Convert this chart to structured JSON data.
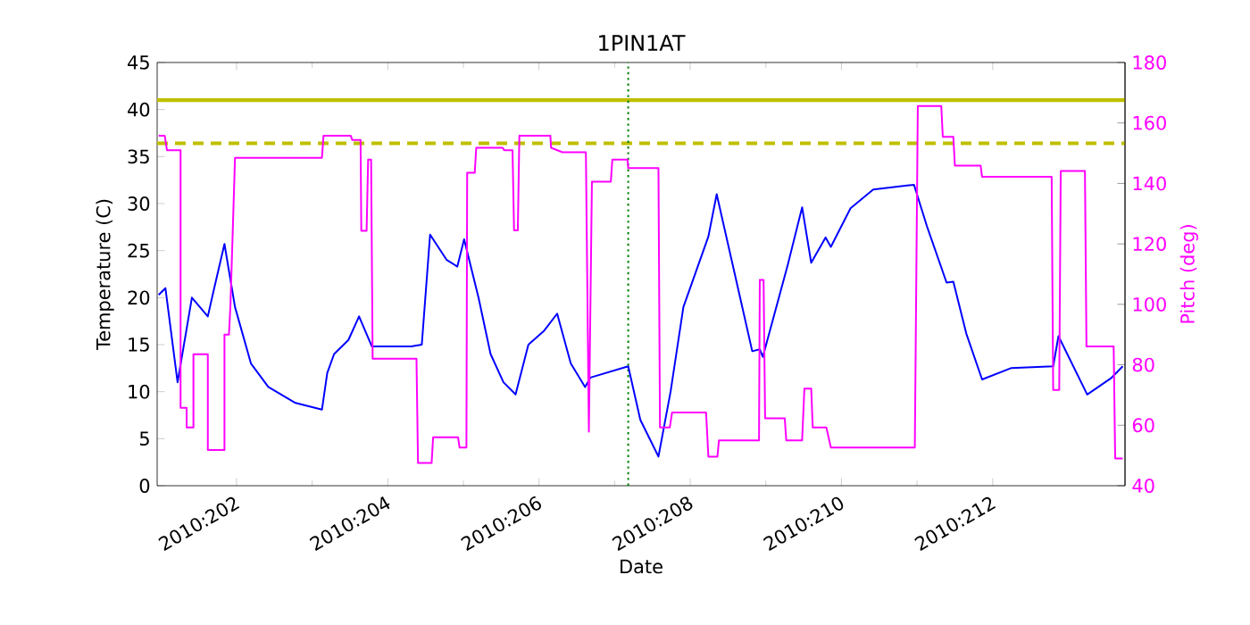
{
  "chart_data": {
    "type": "line",
    "title": "1PIN1AT",
    "xlabel": "Date",
    "ylabel": "Temperature (C)",
    "y2label": "Pitch (deg)",
    "xlim": [
      "2010-07-19T22:48",
      "2010-08-01T18:00"
    ],
    "ylim": [
      0,
      45
    ],
    "y2lim": [
      40,
      180
    ],
    "xticks": [
      {
        "value": "2010-07-21",
        "label": "2010:202"
      },
      {
        "value": "2010-07-23",
        "label": "2010:204"
      },
      {
        "value": "2010-07-25",
        "label": "2010:206"
      },
      {
        "value": "2010-07-27",
        "label": "2010:208"
      },
      {
        "value": "2010-07-29",
        "label": "2010:210"
      },
      {
        "value": "2010-07-31",
        "label": "2010:212"
      }
    ],
    "yticks": [
      0,
      5,
      10,
      15,
      20,
      25,
      30,
      35,
      40,
      45
    ],
    "y2ticks": [
      40,
      60,
      80,
      100,
      120,
      140,
      160,
      180
    ],
    "series": [
      {
        "color": "#0000ff",
        "x": [
          "2010-07-19T23:17",
          "2010-07-20T01:26",
          "2010-07-20T05:17",
          "2010-07-20T09:50",
          "2010-07-20T14:53",
          "2010-07-20T16:34",
          "2010-07-20T20:10",
          "2010-07-20T23:31",
          "2010-07-21T04:34",
          "2010-07-21T10:05",
          "2010-07-21T18:43",
          "2010-07-22T03:07",
          "2010-07-22T04:48",
          "2010-07-22T06:58",
          "2010-07-22T11:31",
          "2010-07-22T14:53",
          "2010-07-22T18:58",
          "2010-07-23T07:26",
          "2010-07-23T10:48",
          "2010-07-23T13:26",
          "2010-07-23T18:43",
          "2010-07-23T22:05",
          "2010-07-24T00:14",
          "2010-07-24T04:48",
          "2010-07-24T08:38",
          "2010-07-24T12:43",
          "2010-07-24T16:34",
          "2010-07-24T20:38",
          "2010-07-25T01:41",
          "2010-07-25T05:46",
          "2010-07-25T10:05",
          "2010-07-25T14:38",
          "2010-07-25T16:19",
          "2010-07-26T04:19",
          "2010-07-26T08:10",
          "2010-07-26T13:55",
          "2010-07-26T17:46",
          "2010-07-26T21:50",
          "2010-07-27T05:46",
          "2010-07-27T08:24",
          "2010-07-27T15:50",
          "2010-07-27T19:41",
          "2010-07-27T22:05",
          "2010-07-27T23:02",
          "2010-07-28T06:58",
          "2010-07-28T11:31",
          "2010-07-28T14:24",
          "2010-07-28T18:58",
          "2010-07-28T20:38",
          "2010-07-29T02:53",
          "2010-07-29T10:05",
          "2010-07-29T23:02",
          "2010-07-30T03:07",
          "2010-07-30T09:22",
          "2010-07-30T11:31",
          "2010-07-30T15:36",
          "2010-07-30T20:38",
          "2010-07-31T05:46",
          "2010-07-31T19:12",
          "2010-07-31T20:53",
          "2010-08-01T06:00",
          "2010-08-01T13:26",
          "2010-08-01T17:17"
        ],
        "values": [
          20.3,
          21,
          11,
          20,
          18,
          20.5,
          25.7,
          19,
          13,
          10.5,
          8.8,
          8.1,
          12,
          14,
          15.5,
          18,
          14.8,
          14.8,
          15,
          26.7,
          24,
          23.3,
          26.2,
          20,
          14,
          11,
          9.7,
          15,
          16.5,
          18.3,
          13,
          10.5,
          11.5,
          12.7,
          7,
          3.1,
          10,
          19,
          26.5,
          31,
          20,
          14.3,
          14.5,
          13.7,
          23.5,
          29.6,
          23.7,
          26.4,
          25.4,
          29.5,
          31.5,
          32,
          27.6,
          21.6,
          21.7,
          16.2,
          11.3,
          12.5,
          12.7,
          15.9,
          9.7,
          11.4,
          12.7
        ]
      },
      {
        "color": "#ff00ff",
        "axis": "y2",
        "x": [
          "2010-07-19T23:17",
          "2010-07-20T01:12",
          "2010-07-20T01:55",
          "2010-07-20T06:14",
          "2010-07-20T06:14",
          "2010-07-20T08:10",
          "2010-07-20T08:10",
          "2010-07-20T10:19",
          "2010-07-20T10:19",
          "2010-07-20T14:53",
          "2010-07-20T14:53",
          "2010-07-20T20:10",
          "2010-07-20T20:10",
          "2010-07-20T21:36",
          "2010-07-20T22:05",
          "2010-07-20T23:31",
          "2010-07-22T03:07",
          "2010-07-22T03:36",
          "2010-07-22T12:14",
          "2010-07-22T12:43",
          "2010-07-22T15:22",
          "2010-07-22T15:36",
          "2010-07-22T17:17",
          "2010-07-22T17:46",
          "2010-07-22T18:43",
          "2010-07-22T19:12",
          "2010-07-23T09:07",
          "2010-07-23T09:36",
          "2010-07-23T13:55",
          "2010-07-23T14:24",
          "2010-07-23T22:19",
          "2010-07-23T22:48",
          "2010-07-24T00:58",
          "2010-07-24T01:12",
          "2010-07-24T03:36",
          "2010-07-24T04:05",
          "2010-07-24T12:29",
          "2010-07-24T12:58",
          "2010-07-24T15:36",
          "2010-07-24T16:05",
          "2010-07-24T17:17",
          "2010-07-24T17:46",
          "2010-07-25T03:36",
          "2010-07-25T03:50",
          "2010-07-25T07:26",
          "2010-07-25T14:53",
          "2010-07-25T15:50",
          "2010-07-25T16:48",
          "2010-07-25T22:48",
          "2010-07-25T23:17",
          "2010-07-26T04:05",
          "2010-07-26T04:19",
          "2010-07-26T13:55",
          "2010-07-26T14:24",
          "2010-07-26T17:31",
          "2010-07-26T18:14",
          "2010-07-27T05:02",
          "2010-07-27T05:46",
          "2010-07-27T08:38",
          "2010-07-27T09:07",
          "2010-07-27T21:50",
          "2010-07-27T22:05",
          "2010-07-27T23:17",
          "2010-07-27T23:46",
          "2010-07-28T06:00",
          "2010-07-28T06:29",
          "2010-07-28T11:31",
          "2010-07-28T12:14",
          "2010-07-28T14:24",
          "2010-07-28T14:53",
          "2010-07-28T19:12",
          "2010-07-28T20:38",
          "2010-07-29T23:17",
          "2010-07-30T00:14",
          "2010-07-30T07:41",
          "2010-07-30T08:10",
          "2010-07-30T11:31",
          "2010-07-30T12:00",
          "2010-07-30T20:10",
          "2010-07-30T20:38",
          "2010-07-31T18:43",
          "2010-07-31T19:12",
          "2010-07-31T21:07",
          "2010-07-31T21:36",
          "2010-08-01T05:17",
          "2010-08-01T05:46",
          "2010-08-01T14:24",
          "2010-08-01T14:53",
          "2010-08-01T17:17"
        ],
        "values": [
          155.8,
          155.8,
          151,
          151,
          65.8,
          65.8,
          59.3,
          59.3,
          83.5,
          83.5,
          51.8,
          51.8,
          90,
          90,
          100.2,
          148.5,
          148.5,
          155.8,
          155.8,
          154.4,
          154.4,
          124.3,
          124.3,
          147.9,
          147.9,
          82,
          82,
          47.5,
          47.5,
          56,
          56,
          52.6,
          52.6,
          143.5,
          143.5,
          151.8,
          151.8,
          151,
          151,
          124.5,
          124.5,
          155.8,
          155.8,
          151.8,
          150.3,
          150.3,
          57.9,
          140.6,
          140.6,
          147.9,
          147.9,
          145.1,
          145.1,
          59.3,
          59.3,
          64.2,
          64.2,
          49.6,
          49.6,
          55,
          55,
          108.1,
          108.1,
          62.3,
          62.3,
          55,
          55,
          72.1,
          72.1,
          59.3,
          59.3,
          52.6,
          52.6,
          165.6,
          165.6,
          155.4,
          155.4,
          145.9,
          145.9,
          142.2,
          142.2,
          71.7,
          71.7,
          144.1,
          144.1,
          86.1,
          86.1,
          49,
          49
        ]
      }
    ],
    "ref_lines": [
      {
        "axis": "y",
        "value": 41,
        "color": "#bfbf00",
        "line_style": "solid"
      },
      {
        "axis": "y",
        "value": 36.4,
        "color": "#bfbf00",
        "line_style": "dashed"
      },
      {
        "axis": "x",
        "value": "2010-07-26T04:19",
        "color": "#008000",
        "line_style": "dotted"
      }
    ]
  }
}
